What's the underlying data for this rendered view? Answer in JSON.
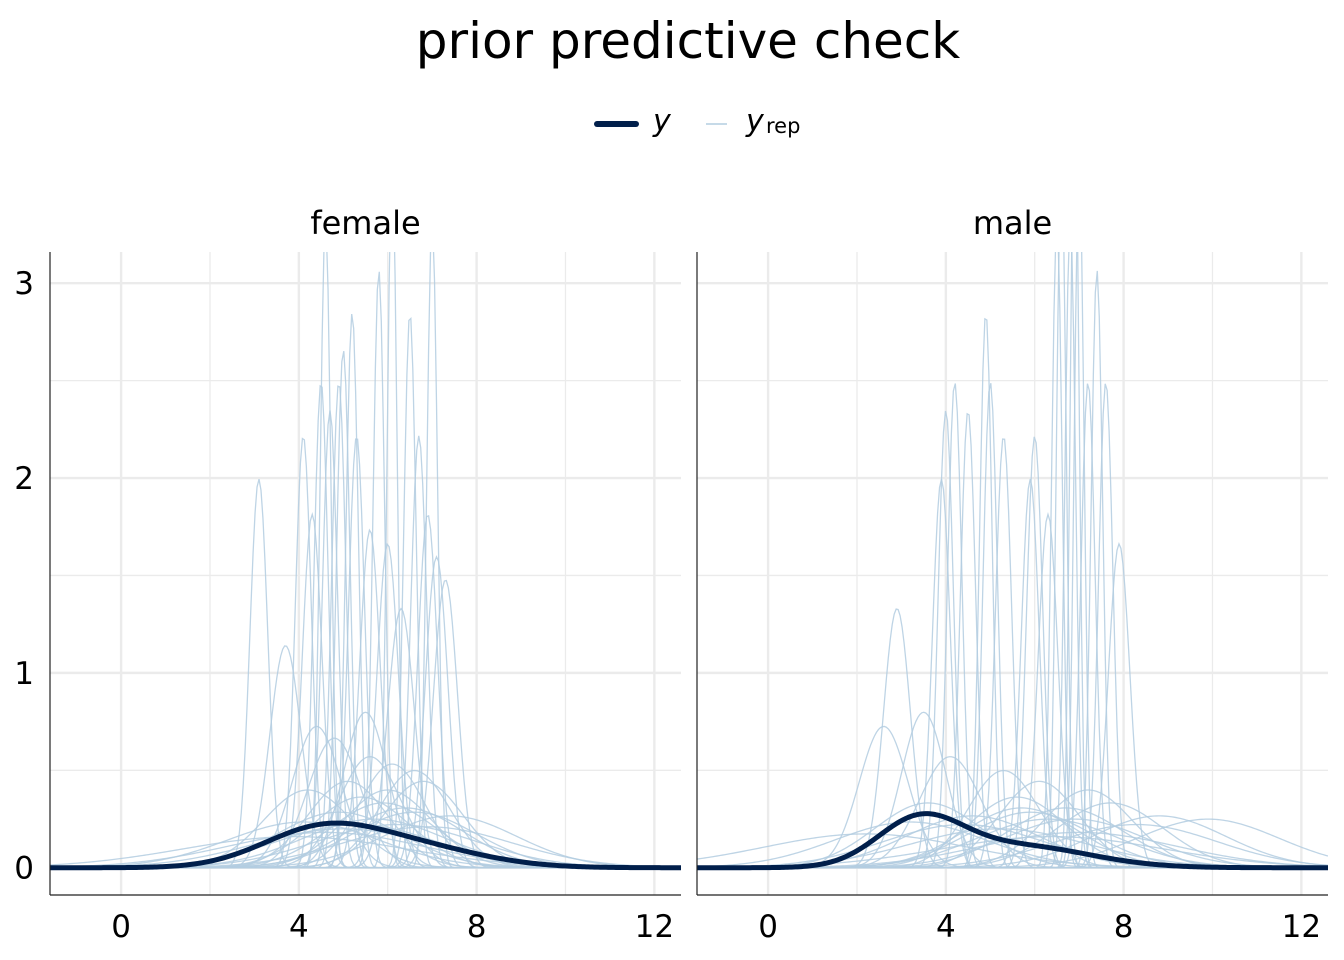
{
  "chart_data": {
    "type": "line",
    "title": "prior predictive check",
    "legend": {
      "placement": "top",
      "entries": [
        {
          "key": "y",
          "label": "y",
          "subscript": "",
          "color": "#011f4b",
          "weight": "thick"
        },
        {
          "key": "yrep",
          "label": "y",
          "subscript": "rep",
          "color": "#b3cde0",
          "weight": "thin"
        }
      ]
    },
    "xlabel": "",
    "ylabel": "",
    "xlim": [
      -1.6,
      12.6
    ],
    "ylim": [
      -0.14,
      3.16
    ],
    "x_ticks": [
      0,
      4,
      8,
      12
    ],
    "x_tick_labels": [
      "0",
      "4",
      "8",
      "12"
    ],
    "y_ticks": [
      0,
      1,
      2,
      3
    ],
    "y_tick_labels": [
      "0",
      "1",
      "2",
      "3"
    ],
    "grid": true,
    "panels": [
      {
        "label": "female",
        "y_series": {
          "name": "y",
          "components": [
            [
              4.4,
              1.3,
              0.55
            ],
            [
              6.4,
              1.6,
              0.45
            ]
          ]
        },
        "yrep_series": [
          [
            3.1,
            0.2
          ],
          [
            4.1,
            0.18
          ],
          [
            4.3,
            0.22
          ],
          [
            4.5,
            0.16
          ],
          [
            4.7,
            0.17
          ],
          [
            4.9,
            0.16
          ],
          [
            5.0,
            0.15
          ],
          [
            5.3,
            0.18
          ],
          [
            5.6,
            0.23
          ],
          [
            6.0,
            0.24
          ],
          [
            6.3,
            0.3
          ],
          [
            6.7,
            0.18
          ],
          [
            6.9,
            0.22
          ],
          [
            7.1,
            0.25
          ],
          [
            7.3,
            0.27
          ],
          [
            3.7,
            0.35
          ],
          [
            5.5,
            0.5
          ],
          [
            4.4,
            0.55
          ],
          [
            4.6,
            0.12
          ],
          [
            5.8,
            0.13
          ],
          [
            6.1,
            0.11
          ],
          [
            6.5,
            0.14
          ],
          [
            7.0,
            0.12
          ],
          [
            5.2,
            0.14
          ],
          [
            4.8,
            0.6
          ],
          [
            5.6,
            0.7
          ],
          [
            6.1,
            0.75
          ],
          [
            6.6,
            0.8
          ],
          [
            5.1,
            0.9
          ],
          [
            6.0,
            1.0
          ],
          [
            5.4,
            1.1
          ],
          [
            6.8,
            0.9
          ],
          [
            4.2,
            1.0
          ],
          [
            5.9,
            1.2
          ],
          [
            6.4,
            1.3
          ],
          [
            4.9,
            1.4
          ],
          [
            5.7,
            1.6
          ],
          [
            6.2,
            1.8
          ],
          [
            5.0,
            2.0
          ],
          [
            4.6,
            2.2
          ],
          [
            3.9,
            2.5
          ],
          [
            6.9,
            1.9
          ],
          [
            7.4,
            1.5
          ],
          [
            5.3,
            1.8
          ],
          [
            6.6,
            1.4
          ],
          [
            4.1,
            1.7
          ]
        ]
      },
      {
        "label": "male",
        "y_series": {
          "name": "y",
          "components": [
            [
              3.4,
              0.95,
              0.55
            ],
            [
              5.6,
              1.6,
              0.45
            ]
          ]
        },
        "yrep_series": [
          [
            2.9,
            0.3
          ],
          [
            3.9,
            0.2
          ],
          [
            4.2,
            0.16
          ],
          [
            4.5,
            0.17
          ],
          [
            4.9,
            0.14
          ],
          [
            5.3,
            0.18
          ],
          [
            5.9,
            0.2
          ],
          [
            6.3,
            0.22
          ],
          [
            6.8,
            0.12
          ],
          [
            7.2,
            0.16
          ],
          [
            7.6,
            0.16
          ],
          [
            7.9,
            0.24
          ],
          [
            6.0,
            0.18
          ],
          [
            6.6,
            0.11
          ],
          [
            7.0,
            0.11
          ],
          [
            7.4,
            0.13
          ],
          [
            5.0,
            0.16
          ],
          [
            4.0,
            0.17
          ],
          [
            6.9,
            0.1
          ],
          [
            6.5,
            0.12
          ],
          [
            3.5,
            0.5
          ],
          [
            2.6,
            0.55
          ],
          [
            4.1,
            0.7
          ],
          [
            5.3,
            0.8
          ],
          [
            6.1,
            0.9
          ],
          [
            7.2,
            1.0
          ],
          [
            3.6,
            1.2
          ],
          [
            5.6,
            1.1
          ],
          [
            6.7,
            1.3
          ],
          [
            4.6,
            1.5
          ],
          [
            5.9,
            1.4
          ],
          [
            7.7,
            1.2
          ],
          [
            3.2,
            1.7
          ],
          [
            6.3,
            1.6
          ],
          [
            8.8,
            1.5
          ],
          [
            9.9,
            1.6
          ],
          [
            4.4,
            1.8
          ],
          [
            5.2,
            2.0
          ],
          [
            7.0,
            2.2
          ],
          [
            6.4,
            2.5
          ],
          [
            2.2,
            2.3
          ],
          [
            8.3,
            1.8
          ],
          [
            5.7,
            1.3
          ],
          [
            6.9,
            1.6
          ]
        ]
      }
    ]
  }
}
